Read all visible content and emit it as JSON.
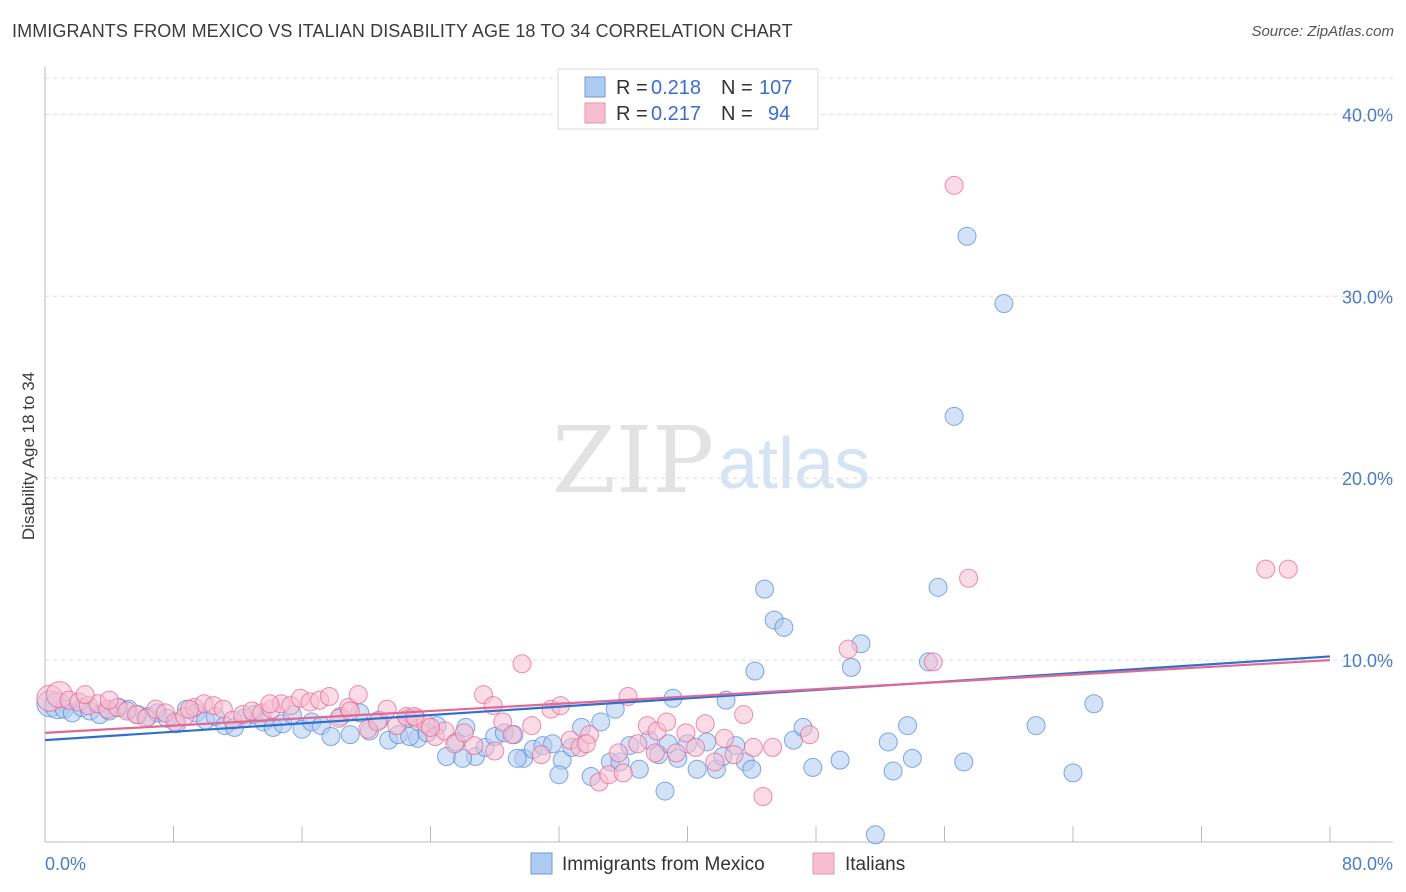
{
  "header": {
    "title": "IMMIGRANTS FROM MEXICO VS ITALIAN DISABILITY AGE 18 TO 34 CORRELATION CHART",
    "source": "Source: ZipAtlas.com"
  },
  "watermark": {
    "zip": "ZIP",
    "atlas": "atlas"
  },
  "stats_legend": [
    {
      "r_label": "R = ",
      "r_value": "0.218",
      "n_label": "N = ",
      "n_value": "107",
      "color": "#aecbf1"
    },
    {
      "r_label": "R = ",
      "r_value": "0.217",
      "n_label": "N = ",
      "n_value": "94",
      "color": "#f7bdd0"
    }
  ],
  "bottom_legend": [
    {
      "label": "Immigrants from Mexico",
      "color": "#aecbf1"
    },
    {
      "label": "Italians",
      "color": "#f7bdd0"
    }
  ],
  "chart_data": {
    "type": "scatter",
    "title": "IMMIGRANTS FROM MEXICO VS ITALIAN DISABILITY AGE 18 TO 34 CORRELATION CHART",
    "xlabel": "",
    "ylabel": "Disability Age 18 to 34",
    "xlim": [
      0,
      80
    ],
    "ylim": [
      0,
      42
    ],
    "x_tick_labels": [
      "0.0%",
      "80.0%"
    ],
    "y_tick_labels": [
      "10.0%",
      "20.0%",
      "30.0%",
      "40.0%"
    ],
    "y_ticks": [
      10,
      20,
      30,
      40
    ],
    "grid": true,
    "legend_position": "top-center",
    "series": [
      {
        "name": "Immigrants from Mexico",
        "color": "#4f86d8",
        "fill": "#aecbf1",
        "trend": [
          [
            0,
            5.6
          ],
          [
            80,
            10.2
          ]
        ],
        "points": [
          [
            0.3,
            7.6
          ],
          [
            0.8,
            7.5
          ],
          [
            1.2,
            7.3
          ],
          [
            1.7,
            7.1
          ],
          [
            2.3,
            7.4
          ],
          [
            2.8,
            7.2
          ],
          [
            3.4,
            7.0
          ],
          [
            4.0,
            7.2
          ],
          [
            4.6,
            7.4
          ],
          [
            5.2,
            7.3
          ],
          [
            5.8,
            7.0
          ],
          [
            6.4,
            6.9
          ],
          [
            7.0,
            7.1
          ],
          [
            7.6,
            6.8
          ],
          [
            8.2,
            6.5
          ],
          [
            8.8,
            7.3
          ],
          [
            9.4,
            7.1
          ],
          [
            10.0,
            6.7
          ],
          [
            10.6,
            6.9
          ],
          [
            11.2,
            6.4
          ],
          [
            11.8,
            6.3
          ],
          [
            12.4,
            6.8
          ],
          [
            13.0,
            7.0
          ],
          [
            13.6,
            6.6
          ],
          [
            14.2,
            6.3
          ],
          [
            14.8,
            6.5
          ],
          [
            15.4,
            7.0
          ],
          [
            16.0,
            6.2
          ],
          [
            16.6,
            6.6
          ],
          [
            17.2,
            6.4
          ],
          [
            17.8,
            5.8
          ],
          [
            18.4,
            6.9
          ],
          [
            19.0,
            5.9
          ],
          [
            19.6,
            7.1
          ],
          [
            20.2,
            6.1
          ],
          [
            20.8,
            6.7
          ],
          [
            21.4,
            5.6
          ],
          [
            22.0,
            5.9
          ],
          [
            22.6,
            6.8
          ],
          [
            23.2,
            5.7
          ],
          [
            23.8,
            6.0
          ],
          [
            24.4,
            6.4
          ],
          [
            25.0,
            4.7
          ],
          [
            25.6,
            5.5
          ],
          [
            26.2,
            6.3
          ],
          [
            26.8,
            4.7
          ],
          [
            27.4,
            5.2
          ],
          [
            28.0,
            5.8
          ],
          [
            28.6,
            6.0
          ],
          [
            29.2,
            5.9
          ],
          [
            29.8,
            4.6
          ],
          [
            30.4,
            5.1
          ],
          [
            31.0,
            5.3
          ],
          [
            31.6,
            5.4
          ],
          [
            32.2,
            4.5
          ],
          [
            32.8,
            5.2
          ],
          [
            33.4,
            6.3
          ],
          [
            34.0,
            3.6
          ],
          [
            34.6,
            6.6
          ],
          [
            35.2,
            4.4
          ],
          [
            35.8,
            4.4
          ],
          [
            36.4,
            5.3
          ],
          [
            37.0,
            4.0
          ],
          [
            37.6,
            5.6
          ],
          [
            38.2,
            4.8
          ],
          [
            38.8,
            5.4
          ],
          [
            39.4,
            4.6
          ],
          [
            40.0,
            5.4
          ],
          [
            40.6,
            4.0
          ],
          [
            41.2,
            5.5
          ],
          [
            41.8,
            4.0
          ],
          [
            42.4,
            7.8
          ],
          [
            43.0,
            5.3
          ],
          [
            43.6,
            4.4
          ],
          [
            44.2,
            9.4
          ],
          [
            44.8,
            13.9
          ],
          [
            45.4,
            12.2
          ],
          [
            46.0,
            11.8
          ],
          [
            46.6,
            5.6
          ],
          [
            47.2,
            6.3
          ],
          [
            49.5,
            4.5
          ],
          [
            50.2,
            9.6
          ],
          [
            50.8,
            10.9
          ],
          [
            22.7,
            5.8
          ],
          [
            26.0,
            4.6
          ],
          [
            29.4,
            4.6
          ],
          [
            32.0,
            3.7
          ],
          [
            38.6,
            2.8
          ],
          [
            39.1,
            7.9
          ],
          [
            42.2,
            4.7
          ],
          [
            44.0,
            4.0
          ],
          [
            47.8,
            4.1
          ],
          [
            51.7,
            0.4
          ],
          [
            52.5,
            5.5
          ],
          [
            53.7,
            6.4
          ],
          [
            54.0,
            4.6
          ],
          [
            55.0,
            9.9
          ],
          [
            55.6,
            14.0
          ],
          [
            56.6,
            23.4
          ],
          [
            57.4,
            33.3
          ],
          [
            59.7,
            29.6
          ],
          [
            65.3,
            7.6
          ],
          [
            52.8,
            3.9
          ],
          [
            64.0,
            3.8
          ],
          [
            61.7,
            6.4
          ],
          [
            35.5,
            7.3
          ],
          [
            57.2,
            4.4
          ]
        ]
      },
      {
        "name": "Italians",
        "color": "#e55f8f",
        "fill": "#f7bdd0",
        "trend": [
          [
            0,
            6.0
          ],
          [
            80,
            10.0
          ]
        ],
        "points": [
          [
            0.3,
            7.9
          ],
          [
            0.9,
            8.1
          ],
          [
            1.5,
            7.8
          ],
          [
            2.1,
            7.7
          ],
          [
            2.7,
            7.5
          ],
          [
            3.3,
            7.6
          ],
          [
            3.9,
            7.3
          ],
          [
            4.5,
            7.4
          ],
          [
            5.1,
            7.2
          ],
          [
            5.7,
            7.0
          ],
          [
            6.3,
            6.8
          ],
          [
            6.9,
            7.3
          ],
          [
            7.5,
            7.1
          ],
          [
            8.1,
            6.6
          ],
          [
            8.7,
            6.9
          ],
          [
            9.3,
            7.4
          ],
          [
            9.9,
            7.6
          ],
          [
            10.5,
            7.5
          ],
          [
            11.1,
            7.3
          ],
          [
            11.7,
            6.7
          ],
          [
            12.3,
            7.0
          ],
          [
            12.9,
            7.2
          ],
          [
            13.5,
            7.1
          ],
          [
            14.1,
            7.3
          ],
          [
            14.7,
            7.6
          ],
          [
            15.3,
            7.5
          ],
          [
            15.9,
            7.9
          ],
          [
            16.5,
            7.7
          ],
          [
            17.1,
            7.8
          ],
          [
            17.7,
            8.0
          ],
          [
            18.3,
            6.8
          ],
          [
            18.9,
            7.4
          ],
          [
            19.5,
            8.1
          ],
          [
            20.1,
            6.2
          ],
          [
            20.7,
            6.6
          ],
          [
            21.3,
            7.3
          ],
          [
            21.9,
            6.4
          ],
          [
            22.5,
            6.9
          ],
          [
            23.1,
            6.8
          ],
          [
            23.7,
            6.5
          ],
          [
            24.3,
            5.8
          ],
          [
            24.9,
            6.1
          ],
          [
            25.5,
            5.4
          ],
          [
            26.1,
            6.0
          ],
          [
            26.7,
            5.3
          ],
          [
            27.3,
            8.1
          ],
          [
            27.9,
            7.5
          ],
          [
            28.5,
            6.6
          ],
          [
            29.1,
            5.9
          ],
          [
            29.7,
            9.8
          ],
          [
            30.3,
            6.4
          ],
          [
            30.9,
            4.8
          ],
          [
            31.5,
            7.3
          ],
          [
            32.1,
            7.5
          ],
          [
            32.7,
            5.6
          ],
          [
            33.3,
            5.2
          ],
          [
            33.9,
            5.9
          ],
          [
            34.5,
            3.3
          ],
          [
            35.1,
            3.7
          ],
          [
            35.7,
            4.9
          ],
          [
            36.3,
            8.0
          ],
          [
            36.9,
            5.4
          ],
          [
            37.5,
            6.4
          ],
          [
            38.1,
            6.1
          ],
          [
            38.7,
            6.6
          ],
          [
            39.3,
            4.9
          ],
          [
            39.9,
            6.0
          ],
          [
            40.5,
            5.2
          ],
          [
            41.1,
            6.5
          ],
          [
            41.7,
            4.4
          ],
          [
            42.3,
            5.7
          ],
          [
            42.9,
            4.8
          ],
          [
            43.5,
            7.0
          ],
          [
            44.1,
            5.2
          ],
          [
            44.7,
            2.5
          ],
          [
            45.3,
            5.2
          ],
          [
            50.0,
            10.6
          ],
          [
            55.3,
            9.9
          ],
          [
            56.6,
            36.1
          ],
          [
            57.5,
            14.5
          ],
          [
            47.6,
            5.9
          ],
          [
            38.0,
            4.9
          ],
          [
            33.7,
            5.4
          ],
          [
            36.0,
            3.8
          ],
          [
            28.0,
            5.0
          ],
          [
            24.0,
            6.3
          ],
          [
            19.0,
            7.2
          ],
          [
            14.0,
            7.6
          ],
          [
            9.0,
            7.3
          ],
          [
            4.0,
            7.8
          ],
          [
            2.5,
            8.1
          ],
          [
            76.0,
            15.0
          ],
          [
            77.4,
            15.0
          ],
          [
            23.0,
            6.9
          ]
        ]
      }
    ]
  }
}
